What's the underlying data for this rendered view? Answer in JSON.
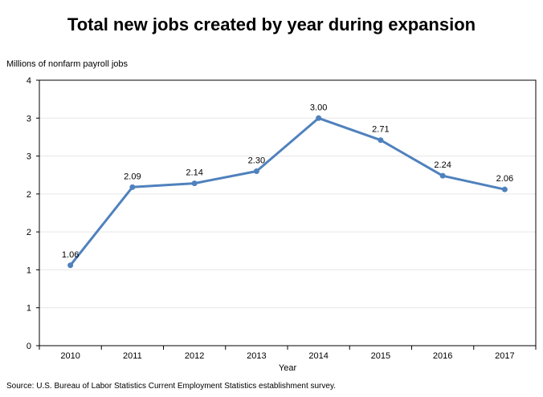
{
  "chart_data": {
    "type": "line",
    "title": "Total new jobs created by year during expansion",
    "ylabel": "Millions of nonfarm payroll jobs",
    "xlabel": "Year",
    "categories": [
      "2010",
      "2011",
      "2012",
      "2013",
      "2014",
      "2015",
      "2016",
      "2017"
    ],
    "values": [
      1.06,
      2.09,
      2.14,
      2.3,
      3.0,
      2.71,
      2.24,
      2.06
    ],
    "data_labels": [
      "1.06",
      "2.09",
      "2.14",
      "2.30",
      "3.00",
      "2.71",
      "2.24",
      "2.06"
    ],
    "ylim": [
      0,
      3.5
    ],
    "ytick_values": [
      0,
      0.5,
      1,
      1.5,
      2,
      2.5,
      3,
      3.5
    ],
    "ytick_labels": [
      "0",
      "1",
      "1",
      "2",
      "2",
      "3",
      "3",
      "4"
    ],
    "grid": true,
    "line_color": "#4f81bd",
    "grid_color": "#e6e6e6"
  },
  "footer": {
    "source": "Source: U.S. Bureau of Labor Statistics Current Employment Statistics establishment survey."
  }
}
